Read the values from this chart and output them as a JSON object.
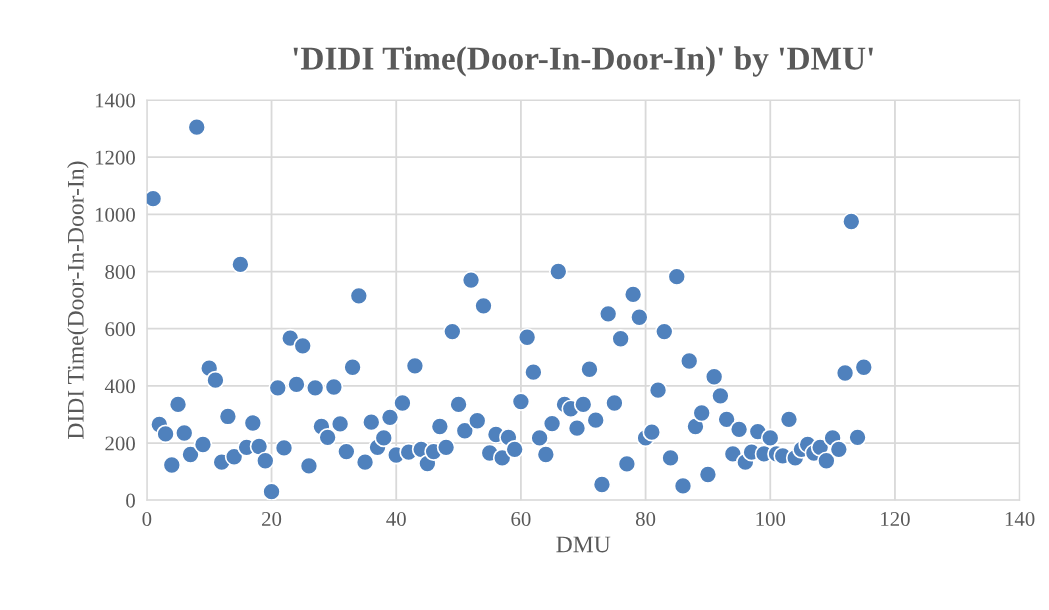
{
  "chart_data": {
    "type": "scatter",
    "title": "'DIDI Time(Door-In-Door-In)' by 'DMU'",
    "xlabel": "DMU",
    "ylabel": "DIDI Time(Door-In-Door-In)",
    "x": [
      1,
      2,
      3,
      4,
      5,
      6,
      7,
      8,
      9,
      10,
      11,
      12,
      13,
      14,
      15,
      16,
      17,
      18,
      19,
      20,
      21,
      22,
      23,
      24,
      25,
      26,
      27,
      28,
      29,
      30,
      31,
      32,
      33,
      34,
      35,
      36,
      37,
      38,
      39,
      40,
      41,
      42,
      43,
      44,
      45,
      46,
      47,
      48,
      49,
      50,
      51,
      52,
      53,
      54,
      55,
      56,
      57,
      58,
      59,
      60,
      61,
      62,
      63,
      64,
      65,
      66,
      67,
      68,
      69,
      70,
      71,
      72,
      73,
      74,
      75,
      76,
      77,
      78,
      79,
      80,
      81,
      82,
      83,
      84,
      85,
      86,
      87,
      88,
      89,
      90,
      91,
      92,
      93,
      94,
      95,
      96,
      97,
      98,
      99,
      100,
      101,
      102,
      103,
      104,
      105,
      106,
      107,
      108,
      109,
      110,
      111,
      112,
      113,
      114,
      115
    ],
    "series": [
      {
        "color": "#4f81bd",
        "values": [
          1055,
          265,
          232,
          123,
          335,
          235,
          160,
          1305,
          195,
          462,
          420,
          133,
          293,
          152,
          825,
          185,
          270,
          188,
          138,
          30,
          393,
          183,
          567,
          405,
          540,
          120,
          393,
          258,
          220,
          396,
          267,
          170,
          465,
          715,
          133,
          273,
          185,
          218,
          290,
          158,
          340,
          168,
          470,
          178,
          128,
          170,
          258,
          185,
          590,
          335,
          243,
          770,
          278,
          680,
          165,
          230,
          148,
          220,
          178,
          345,
          570,
          448,
          218,
          160,
          268,
          800,
          335,
          320,
          252,
          335,
          458,
          280,
          55,
          652,
          340,
          565,
          127,
          720,
          640,
          218,
          238,
          385,
          590,
          148,
          782,
          50,
          487,
          258,
          305,
          90,
          432,
          365,
          283,
          162,
          248,
          133,
          168,
          240,
          162,
          218,
          162,
          155,
          283,
          148,
          178,
          195,
          165,
          185,
          138,
          218,
          178,
          445,
          975,
          220,
          465
        ]
      }
    ],
    "xlim": [
      0,
      140
    ],
    "xticks": [
      0,
      20,
      40,
      60,
      80,
      100,
      120,
      140
    ],
    "ylim": [
      0,
      1400
    ],
    "yticks": [
      0,
      200,
      400,
      600,
      800,
      1000,
      1200,
      1400
    ],
    "grid": true,
    "marker": "circle",
    "legend": false
  }
}
